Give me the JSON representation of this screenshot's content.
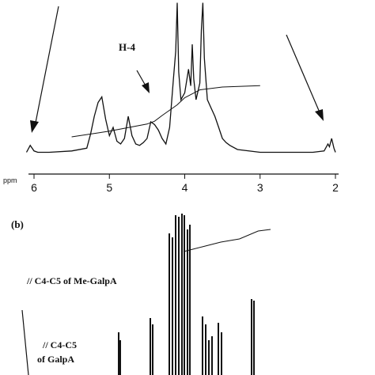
{
  "chart_data": [
    {
      "type": "line",
      "title": "",
      "xlabel": "ppm",
      "ylabel": "",
      "x_reversed": true,
      "xlim": [
        6.2,
        2.0
      ],
      "tick_values": [
        6,
        5,
        4,
        3,
        2
      ],
      "tick_labels": [
        "6",
        "5",
        "4",
        "3",
        "2"
      ],
      "annotations": [
        "H-4"
      ],
      "series": [
        {
          "x": [
            6.1,
            6.05,
            6.0,
            5.95,
            5.8,
            5.5,
            5.3,
            5.25,
            5.2,
            5.15,
            5.1,
            5.05,
            5.0,
            4.95,
            4.9,
            4.85,
            4.8,
            4.75,
            4.7,
            4.65,
            4.6,
            4.55,
            4.5,
            4.45,
            4.4,
            4.35,
            4.3,
            4.25,
            4.2,
            4.15,
            4.12,
            4.1,
            4.08,
            4.05,
            4.0,
            3.95,
            3.92,
            3.9,
            3.88,
            3.85,
            3.8,
            3.78,
            3.76,
            3.74,
            3.72,
            3.7,
            3.65,
            3.6,
            3.55,
            3.5,
            3.45,
            3.4,
            3.3,
            3.0,
            2.6,
            2.3,
            2.15,
            2.1,
            2.08,
            2.05,
            2.02,
            2.0
          ],
          "y": [
            2,
            7,
            3,
            2,
            2,
            3,
            5,
            15,
            28,
            38,
            42,
            26,
            14,
            20,
            10,
            8,
            12,
            28,
            14,
            8,
            7,
            9,
            12,
            24,
            22,
            18,
            12,
            8,
            20,
            55,
            75,
            110,
            60,
            40,
            45,
            62,
            50,
            80,
            55,
            40,
            52,
            90,
            110,
            70,
            55,
            40,
            34,
            28,
            20,
            12,
            9,
            7,
            4,
            2,
            2,
            2,
            3,
            8,
            6,
            12,
            5,
            2
          ]
        },
        {
          "x": [
            5.5,
            5.0,
            4.5,
            4.4,
            4.3,
            4.1,
            4.0,
            3.8,
            3.5,
            3.0
          ],
          "y": [
            10,
            18,
            28,
            32,
            40,
            55,
            65,
            76,
            80,
            82
          ]
        }
      ]
    },
    {
      "type": "line",
      "title": "",
      "panel_label": "(b)",
      "annotations": [
        "// C4-C5 of Me-GalpA",
        "// C4-C5",
        "of GalpA"
      ],
      "series": [
        {
          "x": [
            4.7,
            4.4,
            4.1,
            3.8,
            3.5,
            3.3
          ],
          "y": [
            10,
            13,
            16,
            18,
            23,
            24
          ]
        }
      ]
    }
  ],
  "panel_b": {
    "label": "(b)",
    "annotation_1": "// C4-C5 of Me-GalpA",
    "annotation_2_line1": "// C4-C5",
    "annotation_2_line2": "of GalpA"
  },
  "panel_a": {
    "annotation": "H-4",
    "unit": "ppm"
  }
}
